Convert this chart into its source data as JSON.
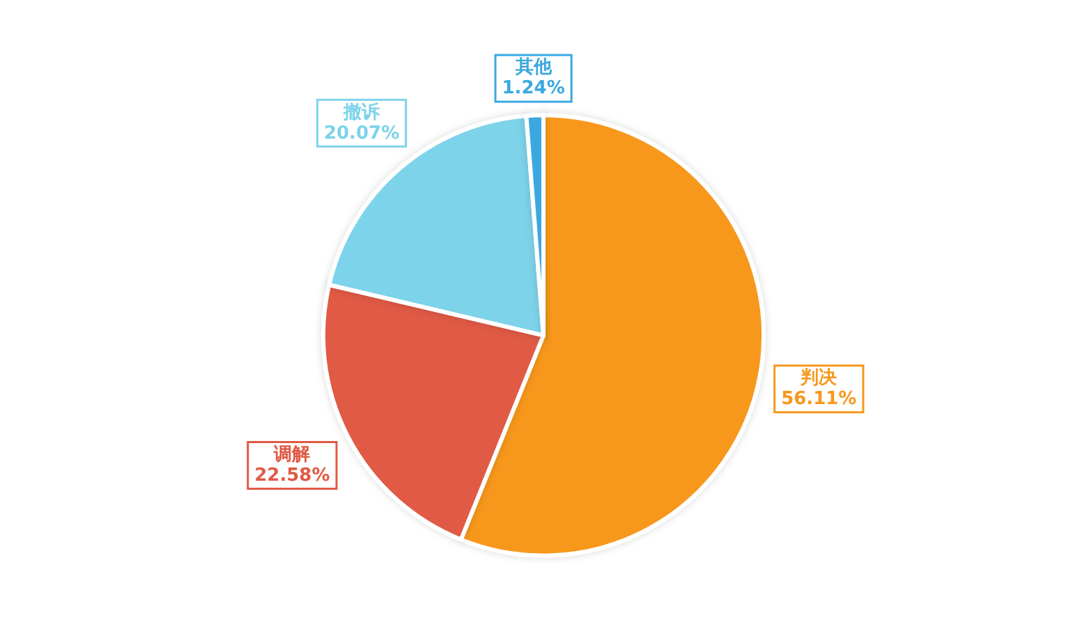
{
  "chart_data": {
    "type": "pie",
    "categories": [
      "判决",
      "调解",
      "撤诉",
      "其他"
    ],
    "values": [
      56.11,
      22.58,
      20.07,
      1.24
    ],
    "value_labels": [
      "56.11%",
      "22.58%",
      "20.07%",
      "1.24%"
    ],
    "colors": [
      "#f7981d",
      "#e05a45",
      "#7dd3ea",
      "#3aa8e0"
    ],
    "legend": false
  }
}
